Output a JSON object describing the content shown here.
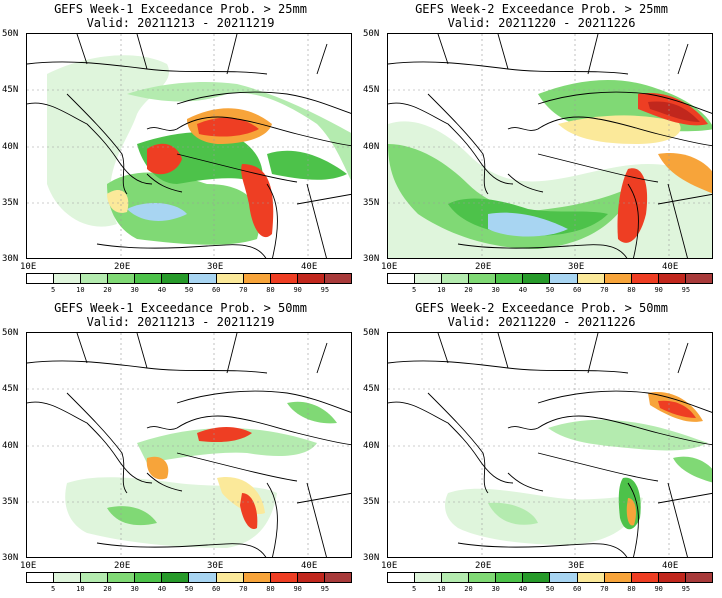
{
  "palette": [
    "#ffffff",
    "#dff5dc",
    "#b4ebaf",
    "#80d975",
    "#4dc24a",
    "#279a2a",
    "#a8d5f2",
    "#fbe99a",
    "#f7a43a",
    "#ee3e23",
    "#c1271d",
    "#a83a3a"
  ],
  "colorbar_labels": [
    "5",
    "10",
    "20",
    "30",
    "40",
    "50",
    "60",
    "70",
    "80",
    "90",
    "95"
  ],
  "lat_labels": [
    "50N",
    "45N",
    "40N",
    "35N",
    "30N"
  ],
  "lon_labels": [
    "10E",
    "20E",
    "30E",
    "40E"
  ],
  "panels": [
    {
      "title": "GEFS Week-1 Exceedance Prob. > 25mm",
      "valid": "Valid: 20211213 - 20211219"
    },
    {
      "title": "GEFS Week-2 Exceedance Prob. > 25mm",
      "valid": "Valid: 20211220 - 20211226"
    },
    {
      "title": "GEFS Week-1 Exceedance Prob. > 50mm",
      "valid": "Valid: 20211213 - 20211219"
    },
    {
      "title": "GEFS Week-2 Exceedance Prob. > 50mm",
      "valid": "Valid: 20211220 - 20211226"
    }
  ]
}
